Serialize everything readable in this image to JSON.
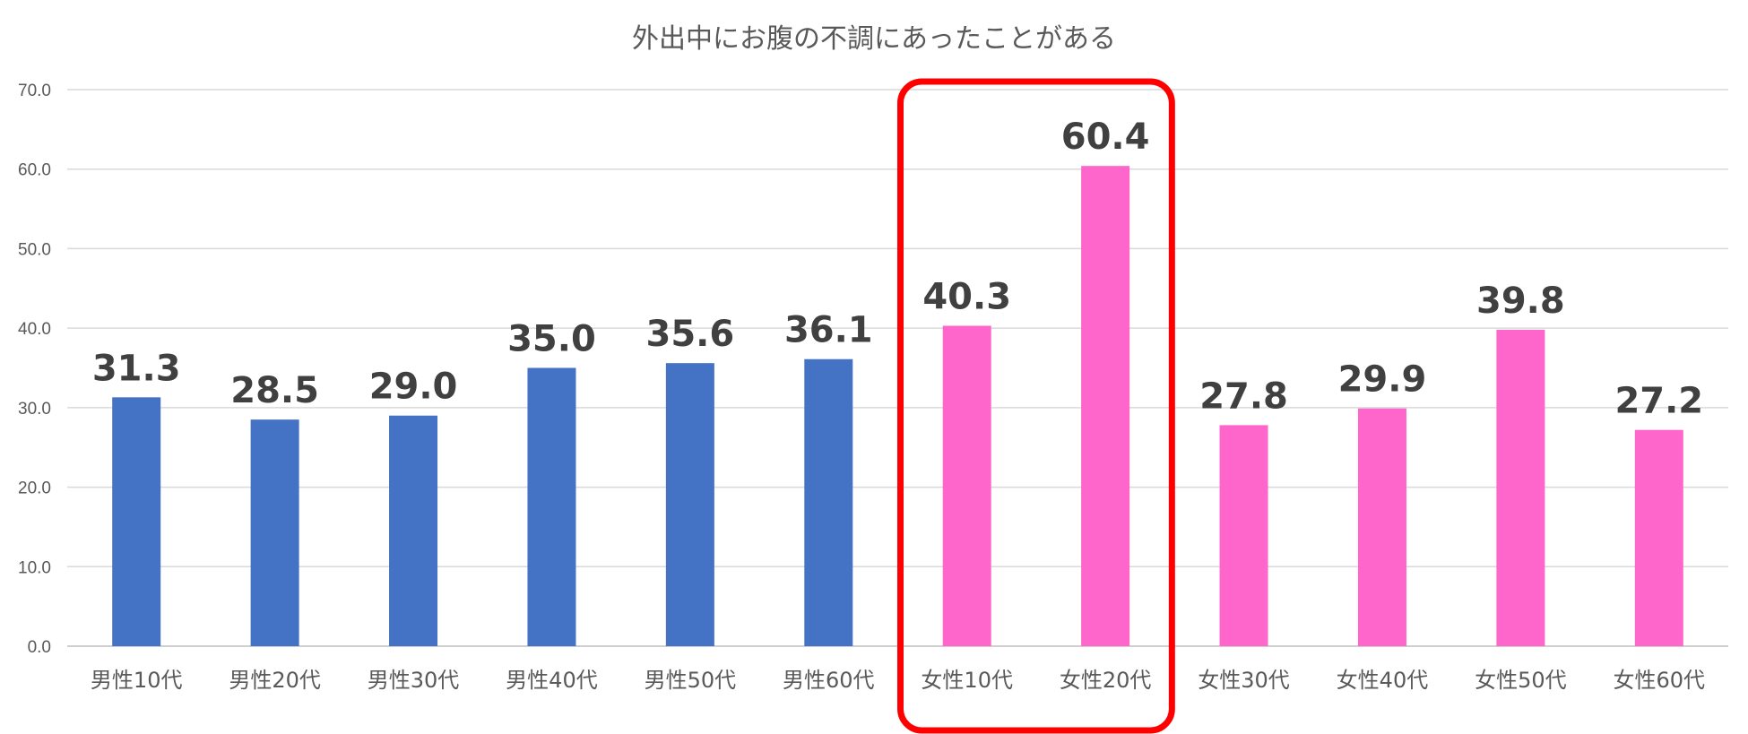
{
  "chart_data": {
    "type": "bar",
    "title": "外出中にお腹の不調にあったことがある",
    "xlabel": "",
    "ylabel": "",
    "ylim": [
      0,
      70
    ],
    "yticks": [
      "0.0",
      "10.0",
      "20.0",
      "30.0",
      "40.0",
      "50.0",
      "60.0",
      "70.0"
    ],
    "grid": true,
    "legend": "none",
    "categories": [
      "男性10代",
      "男性20代",
      "男性30代",
      "男性40代",
      "男性50代",
      "男性60代",
      "女性10代",
      "女性20代",
      "女性30代",
      "女性40代",
      "女性50代",
      "女性60代"
    ],
    "values": [
      31.3,
      28.5,
      29.0,
      35.0,
      35.6,
      36.1,
      40.3,
      60.4,
      27.8,
      29.9,
      39.8,
      27.2
    ],
    "data_labels": [
      "31.3",
      "28.5",
      "29.0",
      "35.0",
      "35.6",
      "36.1",
      "40.3",
      "60.4",
      "27.8",
      "29.9",
      "39.8",
      "27.2"
    ],
    "bar_colors": [
      "#4472c4",
      "#4472c4",
      "#4472c4",
      "#4472c4",
      "#4472c4",
      "#4472c4",
      "#ff66cc",
      "#ff66cc",
      "#ff66cc",
      "#ff66cc",
      "#ff66cc",
      "#ff66cc"
    ],
    "highlight": {
      "categories": [
        "女性10代",
        "女性20代"
      ],
      "color": "#ff0000"
    }
  }
}
